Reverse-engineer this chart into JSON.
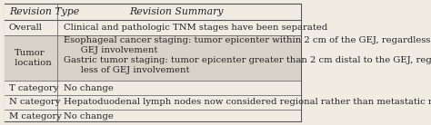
{
  "title_col1": "Revision Type",
  "title_col2": "Revision Summary",
  "rows": [
    {
      "type": "Overall",
      "summary": "Clinical and pathologic TNM stages have been separated",
      "shaded": false,
      "multiline": false
    },
    {
      "type": "Tumor\n  location",
      "summary": "Esophageal cancer staging: tumor epicenter within 2 cm of the GEJ, regardless of\n      GEJ involvement\nGastric tumor staging: tumor epicenter greater than 2 cm distal to the GEJ, regard-\n      less of GEJ involvement",
      "shaded": true,
      "multiline": true
    },
    {
      "type": "T category",
      "summary": "No change",
      "shaded": false,
      "multiline": false
    },
    {
      "type": "N category",
      "summary": "Hepatoduodenal lymph nodes now considered regional rather than metastatic nodes",
      "shaded": false,
      "multiline": false
    },
    {
      "type": "M category",
      "summary": "No change",
      "shaded": false,
      "multiline": false
    }
  ],
  "bg_color": "#f0ece4",
  "shade_color": "#d8d2c8",
  "border_color": "#555555",
  "text_color": "#222222",
  "font_size": 7.2,
  "header_font_size": 7.8
}
